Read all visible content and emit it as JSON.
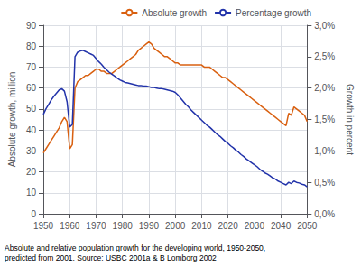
{
  "chart_data": {
    "type": "line",
    "ylabel": "Absolute growth, million",
    "y2label": "Growth in percent",
    "annotations": [
      "Absolute and relative population growth for the developing world, 1950-2050,\npredicted from 2001. Source: USBC 2001a & B Lomborg 2002"
    ],
    "x": [
      1950,
      1951,
      1952,
      1953,
      1954,
      1955,
      1956,
      1957,
      1958,
      1959,
      1960,
      1961,
      1962,
      1963,
      1964,
      1965,
      1966,
      1967,
      1968,
      1969,
      1970,
      1971,
      1972,
      1973,
      1974,
      1975,
      1976,
      1977,
      1978,
      1979,
      1980,
      1981,
      1982,
      1983,
      1984,
      1985,
      1986,
      1987,
      1988,
      1989,
      1990,
      1991,
      1992,
      1993,
      1994,
      1995,
      1996,
      1997,
      1998,
      1999,
      2000,
      2001,
      2002,
      2003,
      2004,
      2005,
      2006,
      2007,
      2008,
      2009,
      2010,
      2011,
      2012,
      2013,
      2014,
      2015,
      2016,
      2017,
      2018,
      2019,
      2020,
      2021,
      2022,
      2023,
      2024,
      2025,
      2026,
      2027,
      2028,
      2029,
      2030,
      2031,
      2032,
      2033,
      2034,
      2035,
      2036,
      2037,
      2038,
      2039,
      2040,
      2041,
      2042,
      2043,
      2044,
      2045,
      2046,
      2047,
      2048,
      2049,
      2050
    ],
    "series": [
      {
        "name": "Absolute growth",
        "color": "#d96010",
        "values": [
          29,
          31,
          33,
          35,
          37,
          39,
          41,
          44,
          46,
          44,
          31,
          33,
          60,
          63,
          64,
          65,
          66,
          66,
          67,
          68,
          69,
          69,
          68,
          68,
          67,
          67,
          67,
          68,
          69,
          70,
          71,
          72,
          73,
          74,
          75,
          76,
          78,
          79,
          80,
          81,
          82,
          81,
          79,
          78,
          77,
          76,
          75,
          75,
          74,
          73,
          72,
          72,
          71,
          71,
          71,
          71,
          71,
          71,
          71,
          71,
          71,
          70,
          70,
          70,
          69,
          68,
          67,
          66,
          65,
          65,
          64,
          63,
          62,
          61,
          60,
          59,
          58,
          57,
          56,
          55,
          54,
          53,
          52,
          51,
          50,
          49,
          48,
          47,
          46,
          45,
          44,
          43,
          42,
          48,
          47,
          51,
          50,
          49,
          48,
          47,
          44
        ]
      },
      {
        "name": "Percentage growth",
        "color": "#2233aa",
        "axis": "y2",
        "values": [
          1.58,
          1.67,
          1.74,
          1.81,
          1.87,
          1.92,
          1.97,
          1.99,
          1.95,
          1.78,
          1.38,
          1.42,
          2.5,
          2.57,
          2.59,
          2.6,
          2.58,
          2.56,
          2.54,
          2.52,
          2.47,
          2.42,
          2.38,
          2.33,
          2.29,
          2.25,
          2.22,
          2.19,
          2.16,
          2.13,
          2.11,
          2.09,
          2.08,
          2.07,
          2.06,
          2.05,
          2.04,
          2.04,
          2.03,
          2.03,
          2.02,
          2.01,
          2.01,
          2.0,
          1.99,
          1.99,
          1.98,
          1.97,
          1.96,
          1.95,
          1.93,
          1.89,
          1.84,
          1.79,
          1.74,
          1.7,
          1.65,
          1.61,
          1.57,
          1.53,
          1.49,
          1.45,
          1.41,
          1.38,
          1.34,
          1.3,
          1.26,
          1.23,
          1.19,
          1.15,
          1.12,
          1.08,
          1.05,
          1.01,
          0.98,
          0.94,
          0.91,
          0.87,
          0.84,
          0.81,
          0.78,
          0.75,
          0.71,
          0.68,
          0.65,
          0.63,
          0.6,
          0.57,
          0.55,
          0.52,
          0.5,
          0.48,
          0.46,
          0.5,
          0.48,
          0.52,
          0.5,
          0.49,
          0.47,
          0.46,
          0.43
        ]
      }
    ],
    "xlim": [
      1950,
      2050
    ],
    "xticks": [
      1950,
      1960,
      1970,
      1980,
      1990,
      2000,
      2010,
      2020,
      2030,
      2040,
      2050
    ],
    "ylim": [
      0,
      90
    ],
    "yticks": [
      0,
      10,
      20,
      30,
      40,
      50,
      60,
      70,
      80,
      90
    ],
    "y2lim": [
      0.0,
      3.0
    ],
    "y2ticks": [
      {
        "value": 0.0,
        "label": "0,0%"
      },
      {
        "value": 0.5,
        "label": "0,5%"
      },
      {
        "value": 1.0,
        "label": "1,0%"
      },
      {
        "value": 1.5,
        "label": "1,5%"
      },
      {
        "value": 2.0,
        "label": "2,0%"
      },
      {
        "value": 2.5,
        "label": "2,5%"
      },
      {
        "value": 3.0,
        "label": "3,0%"
      }
    ],
    "grid": true,
    "legend": "upper right"
  }
}
